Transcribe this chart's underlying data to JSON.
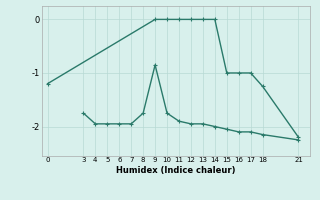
{
  "line1_x": [
    0,
    9,
    10,
    11,
    12,
    13,
    14,
    15,
    16,
    17,
    18,
    21
  ],
  "line1_y": [
    -1.2,
    0.0,
    0.0,
    0.0,
    0.0,
    0.0,
    0.0,
    -1.0,
    -1.0,
    -1.0,
    -1.25,
    -2.2
  ],
  "line2_x": [
    3,
    4,
    5,
    6,
    7,
    8,
    9,
    10,
    11,
    12,
    13,
    14,
    15,
    16,
    17,
    18,
    21
  ],
  "line2_y": [
    -1.75,
    -1.95,
    -1.95,
    -1.95,
    -1.95,
    -1.75,
    -0.85,
    -1.75,
    -1.9,
    -1.95,
    -1.95,
    -2.0,
    -2.05,
    -2.1,
    -2.1,
    -2.15,
    -2.25
  ],
  "line_color": "#2a7a6a",
  "bg_color": "#d8f0ec",
  "grid_color": "#b8dad5",
  "xlabel": "Humidex (Indice chaleur)",
  "xticks": [
    0,
    3,
    4,
    5,
    6,
    7,
    8,
    9,
    10,
    11,
    12,
    13,
    14,
    15,
    16,
    17,
    18,
    21
  ],
  "yticks": [
    0,
    -1,
    -2
  ],
  "xlim": [
    -0.5,
    22
  ],
  "ylim": [
    -2.55,
    0.25
  ],
  "marker": "+",
  "markersize": 3.5,
  "linewidth": 1.0
}
